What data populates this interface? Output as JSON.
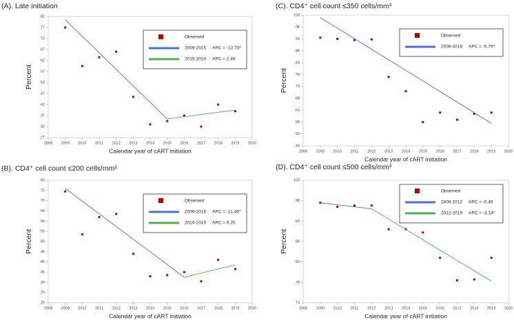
{
  "chart_data": [
    {
      "type": "scatter",
      "title": "(A). Late initiation",
      "xlabel": "Calendar year of cART initiation",
      "ylabel": "Percent",
      "xlim": [
        2008,
        2020
      ],
      "xticks": [
        2008,
        2009,
        2010,
        2011,
        2012,
        2013,
        2014,
        2015,
        2016,
        2017,
        2018,
        2019,
        2020
      ],
      "ylim": [
        27,
        82
      ],
      "yticks": [
        27,
        32,
        37,
        42,
        47,
        52,
        57,
        62,
        67,
        72,
        77,
        82
      ],
      "legend": "upper right",
      "series": [
        {
          "name": "Observed",
          "type": "scatter",
          "color": "#b00000",
          "x": [
            2009,
            2010,
            2011,
            2012,
            2013,
            2014,
            2015,
            2016,
            2017,
            2018,
            2019
          ],
          "values": [
            77,
            59.5,
            63.5,
            66,
            45.5,
            33,
            34.5,
            37,
            32,
            42,
            39
          ]
        },
        {
          "name": "2009-2015",
          "apc": "APC = -12.73*",
          "type": "line",
          "color": "#4a6fd8",
          "x": [
            2009,
            2015
          ],
          "values": [
            80.5,
            35.5
          ]
        },
        {
          "name": "2015-2019",
          "apc": "APC = 2.49",
          "type": "line",
          "color": "#4caf50",
          "x": [
            2015,
            2019
          ],
          "values": [
            35.5,
            39.5
          ]
        }
      ]
    },
    {
      "type": "scatter",
      "title": "(B). CD4⁺ cell count ≤200 cells/mm³",
      "xlabel": "Calendar year of cART initiation",
      "ylabel": "Percent",
      "xlim": [
        2008,
        2020
      ],
      "xticks": [
        2008,
        2009,
        2010,
        2011,
        2012,
        2013,
        2014,
        2015,
        2016,
        2017,
        2018,
        2019,
        2020
      ],
      "ylim": [
        20,
        80
      ],
      "yticks": [
        20,
        25,
        30,
        35,
        40,
        45,
        50,
        55,
        60,
        65,
        70,
        75,
        80
      ],
      "legend": "upper right",
      "series": [
        {
          "name": "Observed",
          "type": "scatter",
          "color": "#b00000",
          "x": [
            2009,
            2010,
            2011,
            2012,
            2013,
            2014,
            2015,
            2016,
            2017,
            2018,
            2019
          ],
          "values": [
            74.5,
            53.5,
            62,
            63.5,
            44,
            33,
            33.5,
            35,
            30.5,
            41,
            36.5
          ]
        },
        {
          "name": "2009-2016",
          "apc": "APC = -11.46*",
          "type": "line",
          "color": "#4a6fd8",
          "x": [
            2009,
            2016
          ],
          "values": [
            76,
            32.5
          ]
        },
        {
          "name": "2016-2019",
          "apc": "APC = 6.25",
          "type": "line",
          "color": "#4caf50",
          "x": [
            2016,
            2019
          ],
          "values": [
            32.5,
            38.5
          ]
        }
      ]
    },
    {
      "type": "scatter",
      "title": "(C). CD4⁺ cell count ≤350 cells/mm³",
      "xlabel": "Calendar year of cART initiation",
      "ylabel": "Percent",
      "xlim": [
        2008,
        2020
      ],
      "xticks": [
        2008,
        2009,
        2010,
        2011,
        2012,
        2013,
        2014,
        2015,
        2016,
        2017,
        2018,
        2019,
        2020
      ],
      "ylim": [
        48,
        103
      ],
      "yticks": [
        48,
        53,
        58,
        63,
        68,
        73,
        78,
        83,
        88,
        93,
        98,
        103
      ],
      "legend": "upper right",
      "series": [
        {
          "name": "Observed",
          "type": "scatter",
          "color": "#b00000",
          "x": [
            2009,
            2010,
            2011,
            2012,
            2013,
            2014,
            2015,
            2016,
            2017,
            2018,
            2019
          ],
          "values": [
            93.5,
            93,
            92.5,
            92.8,
            77,
            71,
            58,
            62,
            59,
            61.5,
            62
          ]
        },
        {
          "name": "2009-2019",
          "apc": "APC = -5.75*",
          "type": "line",
          "color": "#4a6fd8",
          "x": [
            2009,
            2019
          ],
          "values": [
            102,
            57.5
          ]
        }
      ]
    },
    {
      "type": "scatter",
      "title": "(D). CD4⁺ cell count ≤500 cells/mm³",
      "xlabel": "Calendar year of cART initiation",
      "ylabel": "Percent",
      "xlim": [
        2008,
        2020
      ],
      "xticks": [
        2008,
        2009,
        2010,
        2011,
        2012,
        2013,
        2014,
        2015,
        2016,
        2017,
        2018,
        2019,
        2020
      ],
      "ylim": [
        73,
        103
      ],
      "yticks": [
        73,
        78,
        83,
        88,
        93,
        98,
        103
      ],
      "legend": "upper right",
      "series": [
        {
          "name": "Observed",
          "type": "scatter",
          "color": "#b00000",
          "x": [
            2009,
            2010,
            2011,
            2012,
            2013,
            2014,
            2015,
            2016,
            2017,
            2018,
            2019
          ],
          "values": [
            97.5,
            96.5,
            96.8,
            96.8,
            91,
            91,
            90.2,
            84,
            78.5,
            78.7,
            84
          ]
        },
        {
          "name": "2009-2012",
          "apc": "APC = -0.45",
          "type": "line",
          "color": "#4a6fd8",
          "x": [
            2009,
            2012
          ],
          "values": [
            97.5,
            96
          ]
        },
        {
          "name": "2012-2019",
          "apc": "APC = -3.14*",
          "type": "line",
          "color": "#4caf50",
          "x": [
            2012,
            2019
          ],
          "values": [
            96,
            78.3
          ]
        }
      ]
    }
  ]
}
